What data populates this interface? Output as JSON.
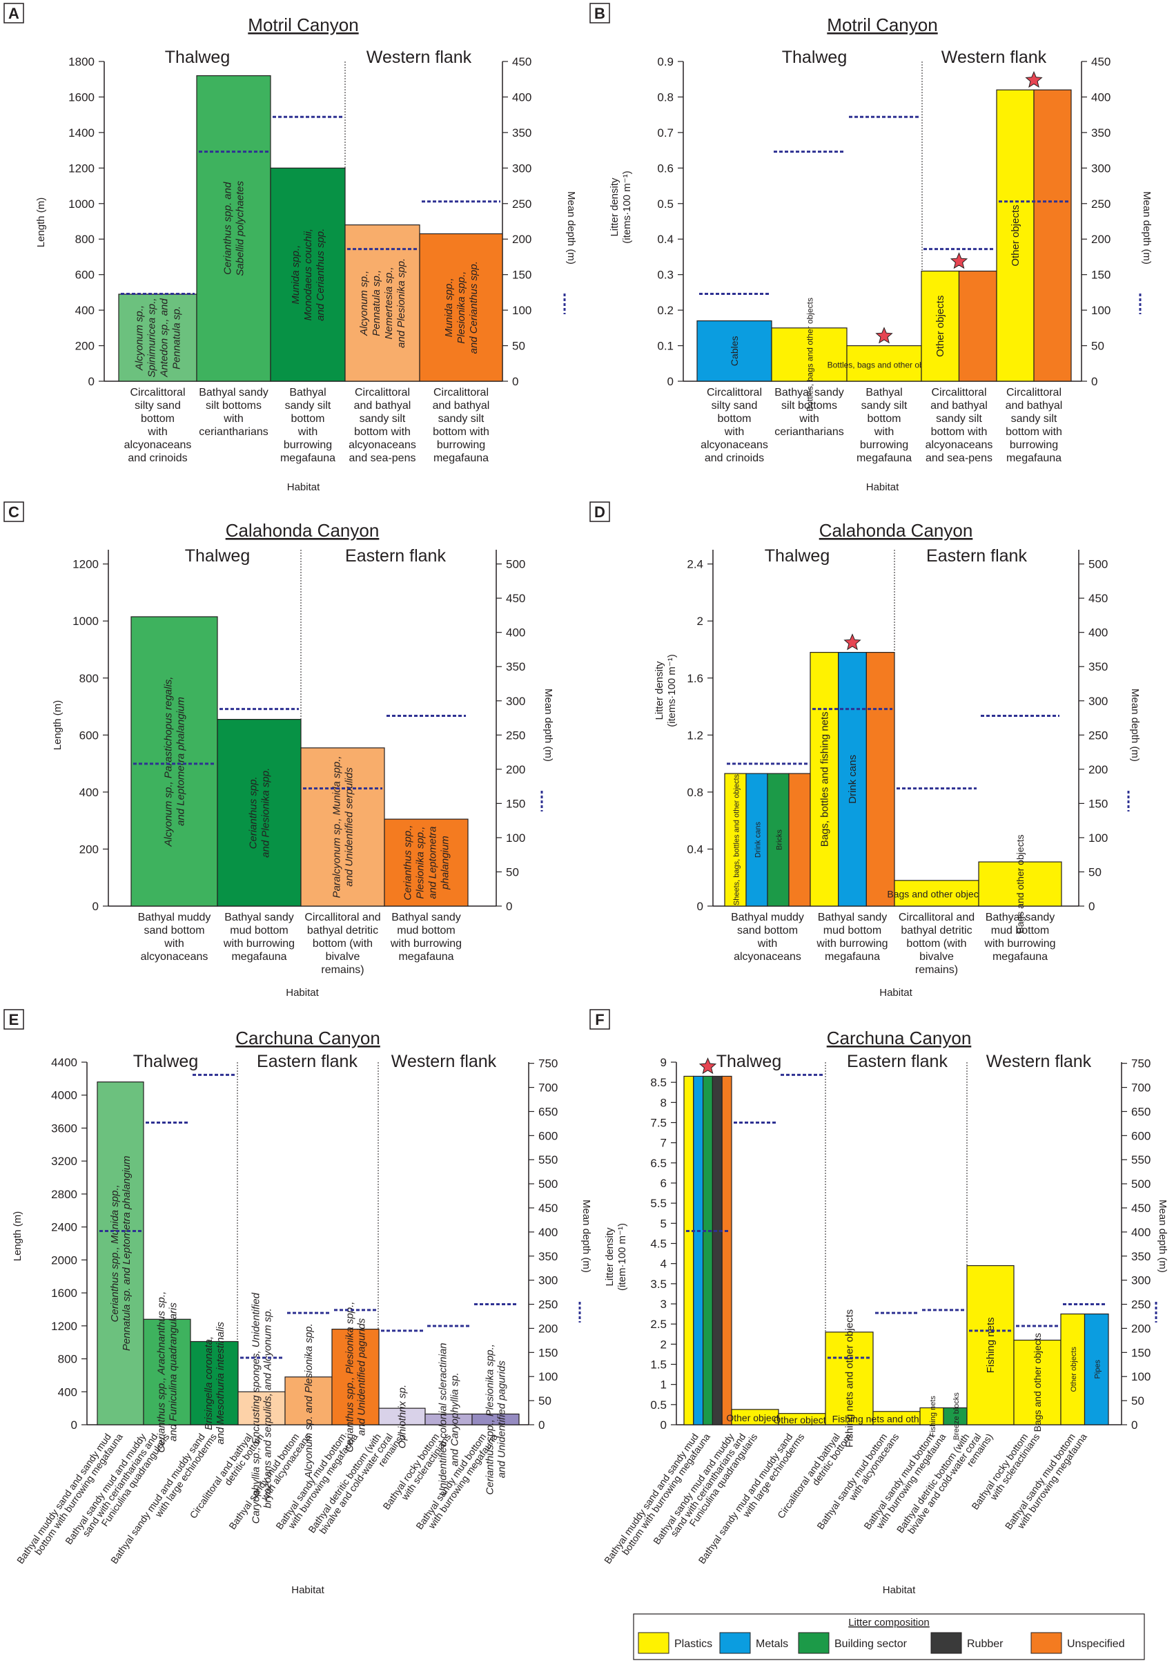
{
  "colors": {
    "plastics": "#fff200",
    "metals": "#0b9de0",
    "building": "#1c9a48",
    "rubber": "#3a3a3a",
    "unspecified": "#f47b20",
    "depth_line": "#2e3192",
    "star": "#e64552"
  },
  "legend": {
    "title": "Litter composition",
    "items": [
      {
        "label": "Plastics",
        "color": "#fff200"
      },
      {
        "label": "Metals",
        "color": "#0b9de0"
      },
      {
        "label": "Building sector",
        "color": "#1c9a48"
      },
      {
        "label": "Rubber",
        "color": "#3a3a3a"
      },
      {
        "label": "Unspecified",
        "color": "#f47b20"
      }
    ]
  },
  "chart_data": [
    {
      "panel": "A",
      "type": "bar",
      "title": "Motril Canyon",
      "xlabel": "Habitat",
      "ylabel": "Length (m)",
      "y2label": "Mean depth (m)",
      "ylim": [
        0,
        1800
      ],
      "yticks": [
        0,
        200,
        400,
        600,
        800,
        1000,
        1200,
        1400,
        1600,
        1800
      ],
      "y2lim": [
        0,
        450
      ],
      "y2ticks": [
        0,
        50,
        100,
        150,
        200,
        250,
        300,
        350,
        400,
        450
      ],
      "sections": [
        {
          "label": "Thalweg",
          "from": 0,
          "to": 3
        },
        {
          "label": "Western flank",
          "from": 3,
          "to": 5
        }
      ],
      "categories": [
        "Circalittoral\nsilty sand\nbottom\nwith\nalcyonaceans\nand crinoids",
        "Bathyal sandy\nsilt bottoms\nwith\nceriantharians",
        "Bathyal\nsandy silt\nbottom\nwith\nburrowing\nmegafauna",
        "Circalittoral\nand bathyal\nsandy silt\nbottom with\nalcyonaceans\nand sea-pens",
        "Circalittoral\nand bathyal\nsandy silt\nbottom with\nburrowing\nmegafauna"
      ],
      "values": [
        490,
        1720,
        1200,
        880,
        830
      ],
      "bar_colors": [
        "#6cc17e",
        "#3eb25e",
        "#079245",
        "#f8ad6b",
        "#f47b20"
      ],
      "bar_labels": [
        [
          "Alcyonum sp.,",
          "Spinimuricea sp.,",
          "Antedon sp., and",
          "Pennatula sp."
        ],
        [
          "Cerianthus spp. and",
          "Sabellid polychaetes"
        ],
        [
          "Munida spp.,",
          "Monodaeus couchii,",
          "and Cerianthus spp."
        ],
        [
          "Alcyonum sp.,",
          "Pennatula sp.,",
          "Nemertesia sp.,",
          "and Plesionika spp."
        ],
        [
          "Munida spp.,",
          "Plesionika spp.,",
          "and Cerianthus spp."
        ]
      ],
      "mean_depth": [
        123,
        323,
        372,
        186,
        253
      ]
    },
    {
      "panel": "B",
      "type": "bar",
      "title": "Motril Canyon",
      "xlabel": "Habitat",
      "ylabel": "Litter density\n(items·100 m⁻¹)",
      "y2label": "Mean depth (m)",
      "ylim": [
        0,
        0.9
      ],
      "yticks": [
        "0",
        "0.1",
        "0.2",
        "0.3",
        "0.4",
        "0.5",
        "0.6",
        "0.7",
        "0.8",
        "0.9"
      ],
      "y2lim": [
        0,
        450
      ],
      "y2ticks": [
        0,
        50,
        100,
        150,
        200,
        250,
        300,
        350,
        400,
        450
      ],
      "sections": [
        {
          "label": "Thalweg",
          "from": 0,
          "to": 3
        },
        {
          "label": "Western flank",
          "from": 3,
          "to": 5
        }
      ],
      "categories": [
        "Circalittoral\nsilty sand\nbottom\nwith\nalcyonaceans\nand crinoids",
        "Bathyal sandy\nsilt bottoms\nwith\nceriantharians",
        "Bathyal\nsandy silt\nbottom\nwith\nburrowing\nmegafauna",
        "Circalittoral\nand bathyal\nsandy silt\nbottom with\nalcyonaceans\nand sea-pens",
        "Circalittoral\nand bathyal\nsandy silt\nbottom with\nburrowing\nmegafauna"
      ],
      "stacks": [
        {
          "total": 0.17,
          "parts": [
            {
              "c": "metals",
              "label": "Cables"
            }
          ]
        },
        {
          "total": 0.15,
          "parts": [
            {
              "c": "plastics",
              "label": "Bottles, bags and other objects"
            }
          ]
        },
        {
          "total": 0.1,
          "star": true,
          "parts": [
            {
              "c": "plastics",
              "label": "Bottles, bags and other objects"
            }
          ]
        },
        {
          "total": 0.31,
          "star": true,
          "parts": [
            {
              "c": "plastics",
              "label": "Other objects"
            },
            {
              "c": "unspecified",
              "label": ""
            }
          ]
        },
        {
          "total": 0.82,
          "star": true,
          "parts": [
            {
              "c": "plastics",
              "label": "Other objects"
            },
            {
              "c": "unspecified",
              "label": ""
            }
          ]
        }
      ],
      "mean_depth": [
        123,
        323,
        372,
        186,
        253
      ]
    },
    {
      "panel": "C",
      "type": "bar",
      "title": "Calahonda Canyon",
      "xlabel": "Habitat",
      "ylabel": "Length (m)",
      "y2label": "Mean depth (m)",
      "ylim": [
        0,
        1250
      ],
      "yticks": [
        0,
        200,
        400,
        600,
        800,
        1000,
        1200
      ],
      "y2lim": [
        0,
        520.8
      ],
      "y2ticks": [
        0,
        50,
        100,
        150,
        200,
        250,
        300,
        350,
        400,
        450,
        500
      ],
      "sections": [
        {
          "label": "Thalweg",
          "from": 0,
          "to": 2
        },
        {
          "label": "Eastern flank",
          "from": 2,
          "to": 4
        }
      ],
      "categories": [
        "Bathyal muddy\nsand bottom\nwith\nalcyonaceans",
        "Bathyal sandy\nmud bottom\nwith burrowing\nmegafauna",
        "Circallitoral and\nbathyal detritic\nbottom (with\nbivalve\nremains)",
        "Bathyal sandy\nmud bottom\nwith burrowing\nmegafauna"
      ],
      "values": [
        1015,
        655,
        555,
        305
      ],
      "bar_colors": [
        "#3eb25e",
        "#079245",
        "#f8ad6b",
        "#f47b20"
      ],
      "bar_labels": [
        [
          "Alcyonum sp., Parastichopus regalis,",
          "and Leptometra phalangium"
        ],
        [
          "Cerianthus spp.",
          "and Plesionika spp."
        ],
        [
          "Paralcyonum sp., Munida spp.,",
          "and Unidentified serpulids"
        ],
        [
          "Cerianthus spp.,",
          "Plesionika spp.,",
          "and Leptometra",
          "phalangium"
        ]
      ],
      "mean_depth": [
        208,
        288,
        172,
        278
      ]
    },
    {
      "panel": "D",
      "type": "bar",
      "title": "Calahonda Canyon",
      "xlabel": "Habitat",
      "ylabel": "Litter density\n(items·100 m⁻¹)",
      "y2label": "Mean depth (m)",
      "ylim": [
        0,
        2.5
      ],
      "yticks": [
        "0",
        "0.4",
        "0.8",
        "1.2",
        "1.6",
        "2",
        "2.4"
      ],
      "y2lim": [
        0,
        520.8
      ],
      "y2ticks": [
        0,
        50,
        100,
        150,
        200,
        250,
        300,
        350,
        400,
        450,
        500
      ],
      "sections": [
        {
          "label": "Thalweg",
          "from": 0,
          "to": 2
        },
        {
          "label": "Eastern flank",
          "from": 2,
          "to": 4
        }
      ],
      "categories": [
        "Bathyal muddy\nsand bottom\nwith\nalcyonaceans",
        "Bathyal sandy\nmud bottom\nwith burrowing\nmegafauna",
        "Circallitoral and\nbathyal detritic\nbottom (with\nbivalve\nremains)",
        "Bathyal sandy\nmud bottom\nwith burrowing\nmegafauna"
      ],
      "stacks": [
        {
          "total": 0.93,
          "parts": [
            {
              "c": "plastics",
              "label": "Sheets, bags, bottles and other objects"
            },
            {
              "c": "metals",
              "label": "Drink cans"
            },
            {
              "c": "building",
              "label": "Bricks"
            },
            {
              "c": "unspecified",
              "label": ""
            }
          ]
        },
        {
          "total": 1.78,
          "star": true,
          "parts": [
            {
              "c": "plastics",
              "label": "Bags, bottles and fishing nets"
            },
            {
              "c": "metals",
              "label": "Drink cans"
            },
            {
              "c": "unspecified",
              "label": ""
            }
          ]
        },
        {
          "total": 0.18,
          "parts": [
            {
              "c": "plastics",
              "label": "Bags and other objects"
            }
          ]
        },
        {
          "total": 0.31,
          "parts": [
            {
              "c": "plastics",
              "label": "Bags and other objects"
            }
          ]
        }
      ],
      "mean_depth": [
        208,
        288,
        172,
        278
      ]
    },
    {
      "panel": "E",
      "type": "bar",
      "title": "Carchuna Canyon",
      "xlabel": "Habitat",
      "ylabel": "Length (m)",
      "y2label": "Mean depth (m)",
      "ylim": [
        0,
        4400
      ],
      "yticks": [
        0,
        400,
        800,
        1200,
        1600,
        2000,
        2400,
        2800,
        3200,
        3600,
        4000,
        4400
      ],
      "y2lim": [
        0,
        752.4
      ],
      "y2ticks": [
        0,
        50,
        100,
        150,
        200,
        250,
        300,
        350,
        400,
        450,
        500,
        550,
        600,
        650,
        700,
        750
      ],
      "sections": [
        {
          "label": "Thalweg",
          "from": 0,
          "to": 3
        },
        {
          "label": "Eastern flank",
          "from": 3,
          "to": 6
        },
        {
          "label": "Western flank",
          "from": 6,
          "to": 9
        }
      ],
      "categories": [
        "Bathyal muddy sand and sandy mud\nbottom with burrowing megafauna",
        "Bathyal sandy mud and muddy\nsand with ceriantharians and\nFuniculina quadrangularis",
        "Bathyal sandy mud and muddy sand\nwith large echinoderms",
        "Circalittoral and bathyal\ndetritic bottom",
        "Bathyal sandy mud bottom\nwith alcyonaceans",
        "Bathyal sandy mud bottom\nwith burrowing megafauna",
        "Bathyal detritic bottom (with\nbivalve and cold-water coral\nremains)",
        "Bathyal rocky bottom\nwith scleractinians",
        "Bathyal sandy mud bottom\nwith burrowing megafauna"
      ],
      "values": [
        4160,
        1280,
        1010,
        400,
        580,
        1160,
        200,
        130,
        130
      ],
      "bar_colors": [
        "#6cc17e",
        "#3eb25e",
        "#079245",
        "#fdd2a8",
        "#f8ad6b",
        "#f47b20",
        "#d9d2e9",
        "#b7acd4",
        "#958bc1"
      ],
      "bar_labels": [
        [
          "Cerianthus spp., Munida spp.,",
          "Pennatula sp. and Leptometra phalangium"
        ],
        [
          "Cerianthus spp., Arachnanthus sp.,",
          "and Funiculina quadrangularis"
        ],
        [
          "Brisingella coronata,",
          "and Mesothuria intestinalis"
        ],
        [
          "Caryophyllia sp., Encrusting sponges, Unidentified",
          "bryozoans and serpulids, and Alcyonum sp."
        ],
        [
          "Alcyonum sp. and Plesionika spp."
        ],
        [
          "Cerianthus spp., Plesionika spp.,",
          "and Unidentified pagurids"
        ],
        [
          "Ophiothrix sp."
        ],
        [
          "Unidentified colonial scleractinian",
          "and Caryophyllia sp."
        ],
        [
          "Cerianthus spp., Plesionika spp.,",
          "and Unidentified pagurids"
        ]
      ],
      "mean_depth": [
        402,
        627,
        726,
        139,
        232,
        238,
        195,
        205,
        250
      ]
    },
    {
      "panel": "F",
      "type": "bar",
      "title": "Carchuna Canyon",
      "xlabel": "Habitat",
      "ylabel": "Litter density\n(item·100 m⁻¹)",
      "y2label": "Mean depth (m)",
      "ylim": [
        0,
        9
      ],
      "yticks": [
        "0",
        "0.5",
        "1",
        "1.5",
        "2",
        "2.5",
        "3",
        "3.5",
        "4",
        "4.5",
        "5",
        "5.5",
        "6",
        "6.5",
        "7",
        "7.5",
        "8",
        "8.5",
        "9"
      ],
      "y2lim": [
        0,
        752.4
      ],
      "y2ticks": [
        0,
        50,
        100,
        150,
        200,
        250,
        300,
        350,
        400,
        450,
        500,
        550,
        600,
        650,
        700,
        750
      ],
      "sections": [
        {
          "label": "Thalweg",
          "from": 0,
          "to": 3
        },
        {
          "label": "Eastern flank",
          "from": 3,
          "to": 6
        },
        {
          "label": "Western flank",
          "from": 6,
          "to": 9
        }
      ],
      "categories": [
        "Bathyal muddy sand and sandy mud\nbottom with burrowing megafauna",
        "Bathyal sandy mud and muddy\nsand with ceriantharians and\nFuniculina quadrangularis",
        "Bathyal sandy mud and muddy sand\nwith large echinoderms",
        "Circalittoral and bathyal\ndetritic bottom",
        "Bathyal sandy mud bottom\nwith alcyonaceans",
        "Bathyal sandy mud bottom\nwith burrowing megafauna",
        "Bathyal detritic bottom (with\nbivalve and cold-water coral\nremains)",
        "Bathyal rocky bottom\nwith scleractinians",
        "Bathyal sandy mud bottom\nwith burrowing megafauna"
      ],
      "stacks": [
        {
          "total": 8.65,
          "star": true,
          "parts": [
            {
              "c": "plastics",
              "label": ""
            },
            {
              "c": "metals",
              "label": ""
            },
            {
              "c": "building",
              "label": ""
            },
            {
              "c": "rubber",
              "label": ""
            },
            {
              "c": "unspecified",
              "label": ""
            }
          ]
        },
        {
          "total": 0.38,
          "parts": [
            {
              "c": "plastics",
              "label": "Other objects"
            }
          ]
        },
        {
          "total": 0.28,
          "parts": [
            {
              "c": "plastics",
              "label": "Other objects"
            }
          ]
        },
        {
          "total": 2.3,
          "parts": [
            {
              "c": "plastics",
              "label": "Fishing nets and other objects"
            }
          ]
        },
        {
          "total": 0.33,
          "parts": [
            {
              "c": "plastics",
              "label": "Fishing nets and other objects"
            }
          ]
        },
        {
          "total": 0.42,
          "parts": [
            {
              "c": "plastics",
              "label": "Fishing nets"
            },
            {
              "c": "building",
              "label": "Breeze blocks"
            }
          ]
        },
        {
          "total": 3.95,
          "parts": [
            {
              "c": "plastics",
              "label": "Fishing nets"
            }
          ]
        },
        {
          "total": 2.1,
          "parts": [
            {
              "c": "plastics",
              "label": "Bags and other objects"
            }
          ]
        },
        {
          "total": 2.75,
          "parts": [
            {
              "c": "plastics",
              "label": "Other objects"
            },
            {
              "c": "metals",
              "label": "Pipes"
            }
          ]
        }
      ],
      "mean_depth": [
        402,
        627,
        726,
        139,
        232,
        238,
        195,
        205,
        250
      ]
    }
  ]
}
